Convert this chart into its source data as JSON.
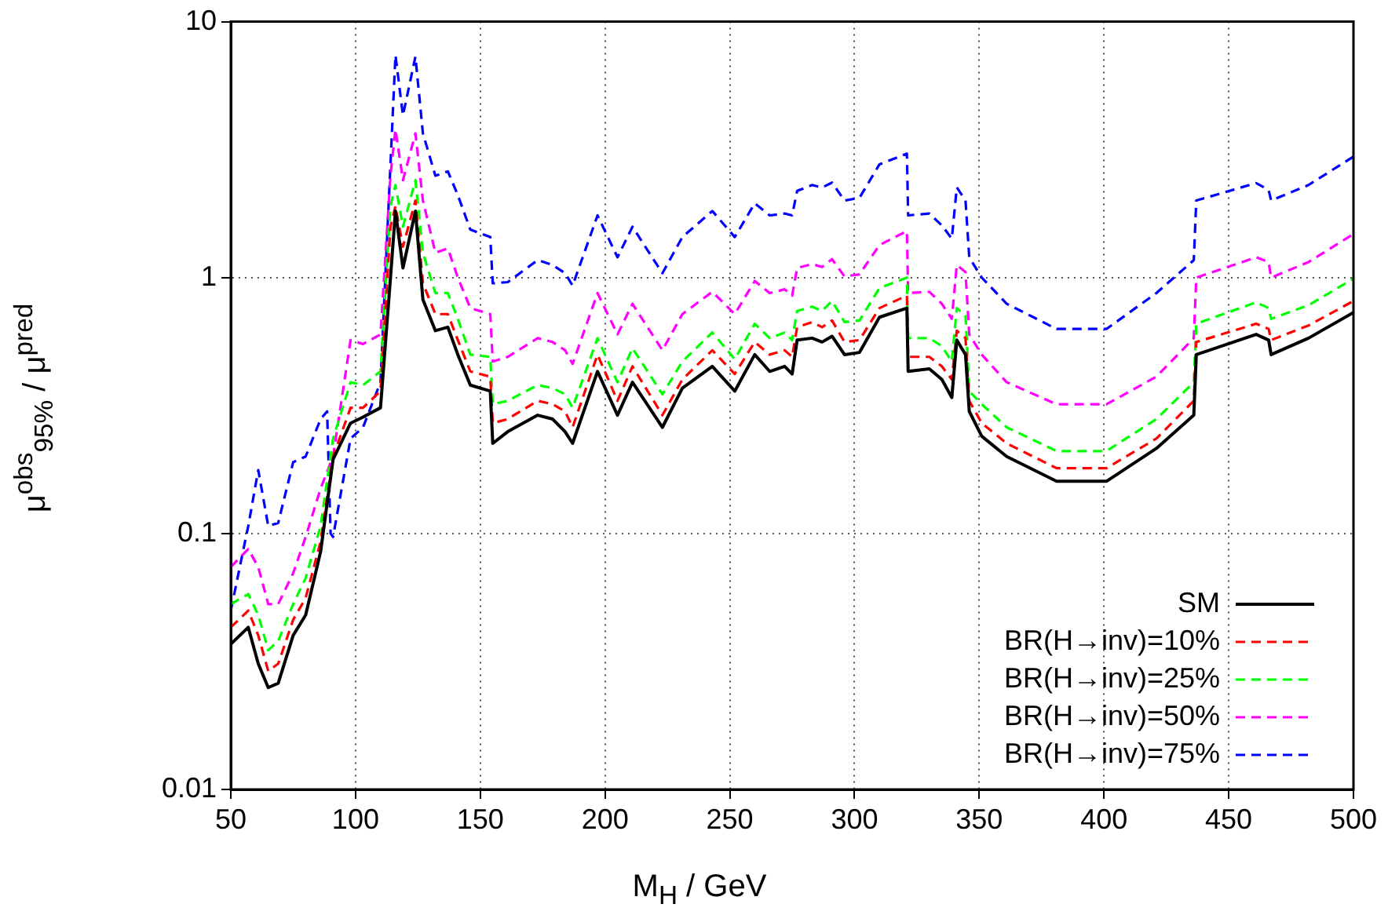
{
  "chart_data": {
    "type": "line",
    "xlabel": "M$_{H}$ / GeV",
    "ylabel": "μ$^{obs}$$_{95%}$ / μ$^{pred}$",
    "log": "y",
    "grid": true,
    "legend": "bottom right",
    "marker": "none",
    "xlim": [
      50,
      500
    ],
    "xticks": [
      50,
      100,
      150,
      200,
      250,
      300,
      350,
      400,
      450,
      500
    ],
    "ylim": [
      0.01,
      10
    ],
    "yticks": [
      0.01,
      0.1,
      1,
      10
    ],
    "x": [
      50,
      57,
      61,
      65,
      69,
      75,
      80,
      86,
      91,
      98,
      103,
      110,
      114,
      116,
      119,
      124,
      127,
      132,
      137,
      141,
      146,
      154,
      155,
      161,
      173,
      179,
      184,
      187,
      197,
      205,
      211,
      223,
      231,
      243,
      252,
      260,
      266,
      272,
      275,
      277,
      283,
      287,
      291,
      296,
      302,
      310,
      321,
      321.5,
      330,
      335,
      339,
      341,
      344.5,
      346,
      351,
      361,
      381,
      401,
      421,
      436,
      437,
      461,
      466,
      467,
      482,
      500
    ],
    "series": [
      {
        "name": "SM",
        "color": "#000000",
        "line_style": "solid",
        "values": [
          0.037,
          0.043,
          0.031,
          0.025,
          0.026,
          0.04,
          0.048,
          0.085,
          0.195,
          0.27,
          0.285,
          0.31,
          1.0,
          1.82,
          1.09,
          1.82,
          0.82,
          0.62,
          0.64,
          0.5,
          0.38,
          0.36,
          0.225,
          0.25,
          0.29,
          0.28,
          0.25,
          0.225,
          0.43,
          0.29,
          0.39,
          0.26,
          0.37,
          0.45,
          0.36,
          0.5,
          0.43,
          0.45,
          0.42,
          0.57,
          0.58,
          0.56,
          0.59,
          0.5,
          0.51,
          0.7,
          0.76,
          0.43,
          0.44,
          0.4,
          0.34,
          0.57,
          0.5,
          0.3,
          0.24,
          0.2,
          0.16,
          0.16,
          0.215,
          0.29,
          0.5,
          0.6,
          0.57,
          0.5,
          0.58,
          0.73
        ]
      },
      {
        "name": "BR(H→inv)=10%",
        "color": "#ff0000",
        "line_style": "dashed",
        "values": [
          0.043,
          0.05,
          0.04,
          0.029,
          0.031,
          0.046,
          0.056,
          0.093,
          0.2,
          0.31,
          0.31,
          0.36,
          1.58,
          1.9,
          1.32,
          2.0,
          0.95,
          0.72,
          0.72,
          0.57,
          0.43,
          0.41,
          0.27,
          0.28,
          0.33,
          0.32,
          0.3,
          0.26,
          0.5,
          0.33,
          0.45,
          0.29,
          0.4,
          0.52,
          0.42,
          0.56,
          0.5,
          0.52,
          0.49,
          0.64,
          0.67,
          0.64,
          0.68,
          0.56,
          0.57,
          0.76,
          0.85,
          0.49,
          0.49,
          0.45,
          0.4,
          0.62,
          0.58,
          0.33,
          0.27,
          0.225,
          0.18,
          0.18,
          0.235,
          0.33,
          0.56,
          0.66,
          0.63,
          0.57,
          0.65,
          0.81
        ]
      },
      {
        "name": "BR(H→inv)=25%",
        "color": "#00ff00",
        "line_style": "dashed",
        "values": [
          0.053,
          0.058,
          0.048,
          0.035,
          0.038,
          0.053,
          0.067,
          0.107,
          0.235,
          0.39,
          0.38,
          0.43,
          1.9,
          2.3,
          1.58,
          2.4,
          1.25,
          0.87,
          0.87,
          0.69,
          0.5,
          0.49,
          0.32,
          0.33,
          0.38,
          0.37,
          0.35,
          0.31,
          0.58,
          0.39,
          0.53,
          0.35,
          0.47,
          0.61,
          0.48,
          0.66,
          0.58,
          0.61,
          0.57,
          0.74,
          0.77,
          0.74,
          0.81,
          0.67,
          0.68,
          0.91,
          1.0,
          0.58,
          0.58,
          0.54,
          0.47,
          0.76,
          0.71,
          0.36,
          0.32,
          0.26,
          0.21,
          0.21,
          0.28,
          0.39,
          0.66,
          0.8,
          0.76,
          0.69,
          0.78,
          0.99
        ]
      },
      {
        "name": "BR(H→inv)=50%",
        "color": "#ff00ff",
        "line_style": "dashed",
        "values": [
          0.074,
          0.087,
          0.074,
          0.053,
          0.053,
          0.07,
          0.097,
          0.15,
          0.2,
          0.57,
          0.55,
          0.6,
          2.5,
          3.8,
          2.4,
          3.66,
          2.0,
          1.25,
          1.3,
          1.0,
          0.76,
          0.72,
          0.47,
          0.49,
          0.58,
          0.56,
          0.52,
          0.46,
          0.87,
          0.6,
          0.79,
          0.52,
          0.72,
          0.88,
          0.72,
          0.97,
          0.87,
          0.9,
          0.85,
          1.09,
          1.13,
          1.1,
          1.18,
          1.01,
          1.03,
          1.34,
          1.52,
          0.87,
          0.88,
          0.79,
          0.69,
          1.12,
          1.05,
          0.6,
          0.5,
          0.39,
          0.32,
          0.32,
          0.41,
          0.58,
          1.0,
          1.2,
          1.15,
          1.0,
          1.15,
          1.48
        ]
      },
      {
        "name": "BR(H→inv)=75%",
        "color": "#0000ff",
        "line_style": "dashed",
        "x": [
          50,
          57,
          61,
          65,
          69,
          75,
          80,
          86,
          88.6,
          90,
          91,
          98,
          103,
          110,
          114,
          116,
          119,
          124,
          127,
          132,
          137,
          141,
          146,
          154,
          155,
          161,
          173,
          179,
          184,
          187,
          197,
          205,
          211,
          223,
          231,
          243,
          252,
          260,
          266,
          272,
          275,
          277,
          283,
          287,
          291,
          296,
          302,
          310,
          321,
          321.5,
          330,
          335,
          339,
          341,
          344.5,
          346,
          351,
          361,
          381,
          401,
          421,
          436,
          437,
          461,
          466,
          467,
          482,
          500
        ],
        "values": [
          0.05,
          0.107,
          0.177,
          0.107,
          0.11,
          0.19,
          0.2,
          0.28,
          0.3,
          0.1,
          0.097,
          0.235,
          0.26,
          0.39,
          2.77,
          7.4,
          4.3,
          7.3,
          3.66,
          2.5,
          2.6,
          2.1,
          1.54,
          1.44,
          0.95,
          0.96,
          1.17,
          1.12,
          1.04,
          0.93,
          1.75,
          1.2,
          1.58,
          1.04,
          1.44,
          1.82,
          1.44,
          1.95,
          1.75,
          1.78,
          1.75,
          2.18,
          2.3,
          2.25,
          2.35,
          2.0,
          2.05,
          2.77,
          3.05,
          1.75,
          1.78,
          1.6,
          1.42,
          2.25,
          2.0,
          1.2,
          1.0,
          0.79,
          0.63,
          0.63,
          0.87,
          1.17,
          2.0,
          2.34,
          2.2,
          2.0,
          2.3,
          2.97
        ]
      }
    ]
  }
}
